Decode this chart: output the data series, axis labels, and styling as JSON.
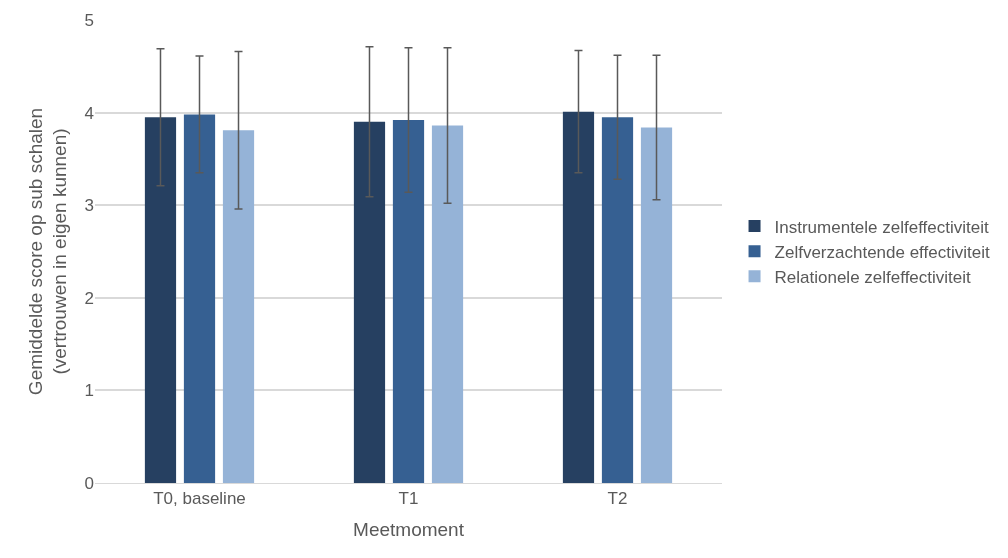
{
  "chart_data": {
    "type": "bar",
    "xlabel": "Meetmoment",
    "ylabel": "Gemiddelde score op sub schalen\n(vertrouwen in eigen kunnen)",
    "categories": [
      "T0, baseline",
      "T1",
      "T2"
    ],
    "series": [
      {
        "name": "Instrumentele zelfeffectiviteit",
        "color": "#264061",
        "values": [
          3.95,
          3.9,
          4.01
        ],
        "errors": [
          0.74,
          0.81,
          0.66
        ]
      },
      {
        "name": "Zelfverzachtende effectiviteit",
        "color": "#366092",
        "values": [
          3.98,
          3.92,
          3.95
        ],
        "errors": [
          0.63,
          0.78,
          0.67
        ]
      },
      {
        "name": "Relationele zelfeffectiviteit",
        "color": "#95b3d7",
        "values": [
          3.81,
          3.86,
          3.84
        ],
        "errors": [
          0.85,
          0.84,
          0.78
        ]
      }
    ],
    "ylim": [
      0,
      5
    ],
    "yticks": [
      0,
      1,
      2,
      3,
      4,
      5
    ],
    "grid": "y",
    "legend": "right"
  }
}
